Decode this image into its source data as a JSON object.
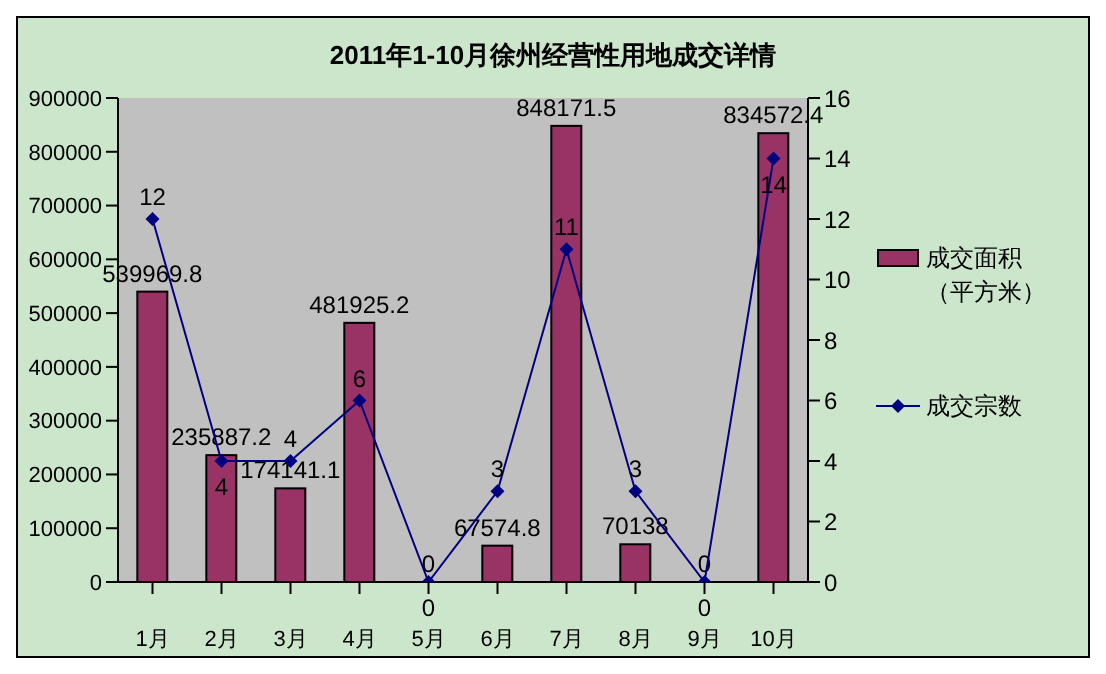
{
  "chart_data": {
    "type": "bar",
    "title": "2011年1-10月徐州经营性用地成交详情",
    "categories": [
      "1月",
      "2月",
      "3月",
      "4月",
      "5月",
      "6月",
      "7月",
      "8月",
      "9月",
      "10月"
    ],
    "series": [
      {
        "name": "成交面积（平方米）",
        "type": "bar",
        "color": "#993366",
        "values": [
          539969.8,
          235887.2,
          174141.1,
          481925.2,
          0,
          67574.8,
          848171.5,
          70138,
          0,
          834572.4
        ]
      },
      {
        "name": "成交宗数",
        "type": "line",
        "axis": "y2",
        "color": "#000080",
        "marker": "diamond",
        "values": [
          12,
          4,
          4,
          6,
          0,
          3,
          11,
          3,
          0,
          14
        ]
      }
    ],
    "ylim": [
      0,
      900000
    ],
    "yticks": [
      0,
      100000,
      200000,
      300000,
      400000,
      500000,
      600000,
      700000,
      800000,
      900000
    ],
    "y2lim": [
      0,
      16
    ],
    "y2ticks": [
      0,
      2,
      4,
      6,
      8,
      10,
      12,
      14,
      16
    ],
    "data_labels": true,
    "grid": false,
    "legend": "right"
  }
}
